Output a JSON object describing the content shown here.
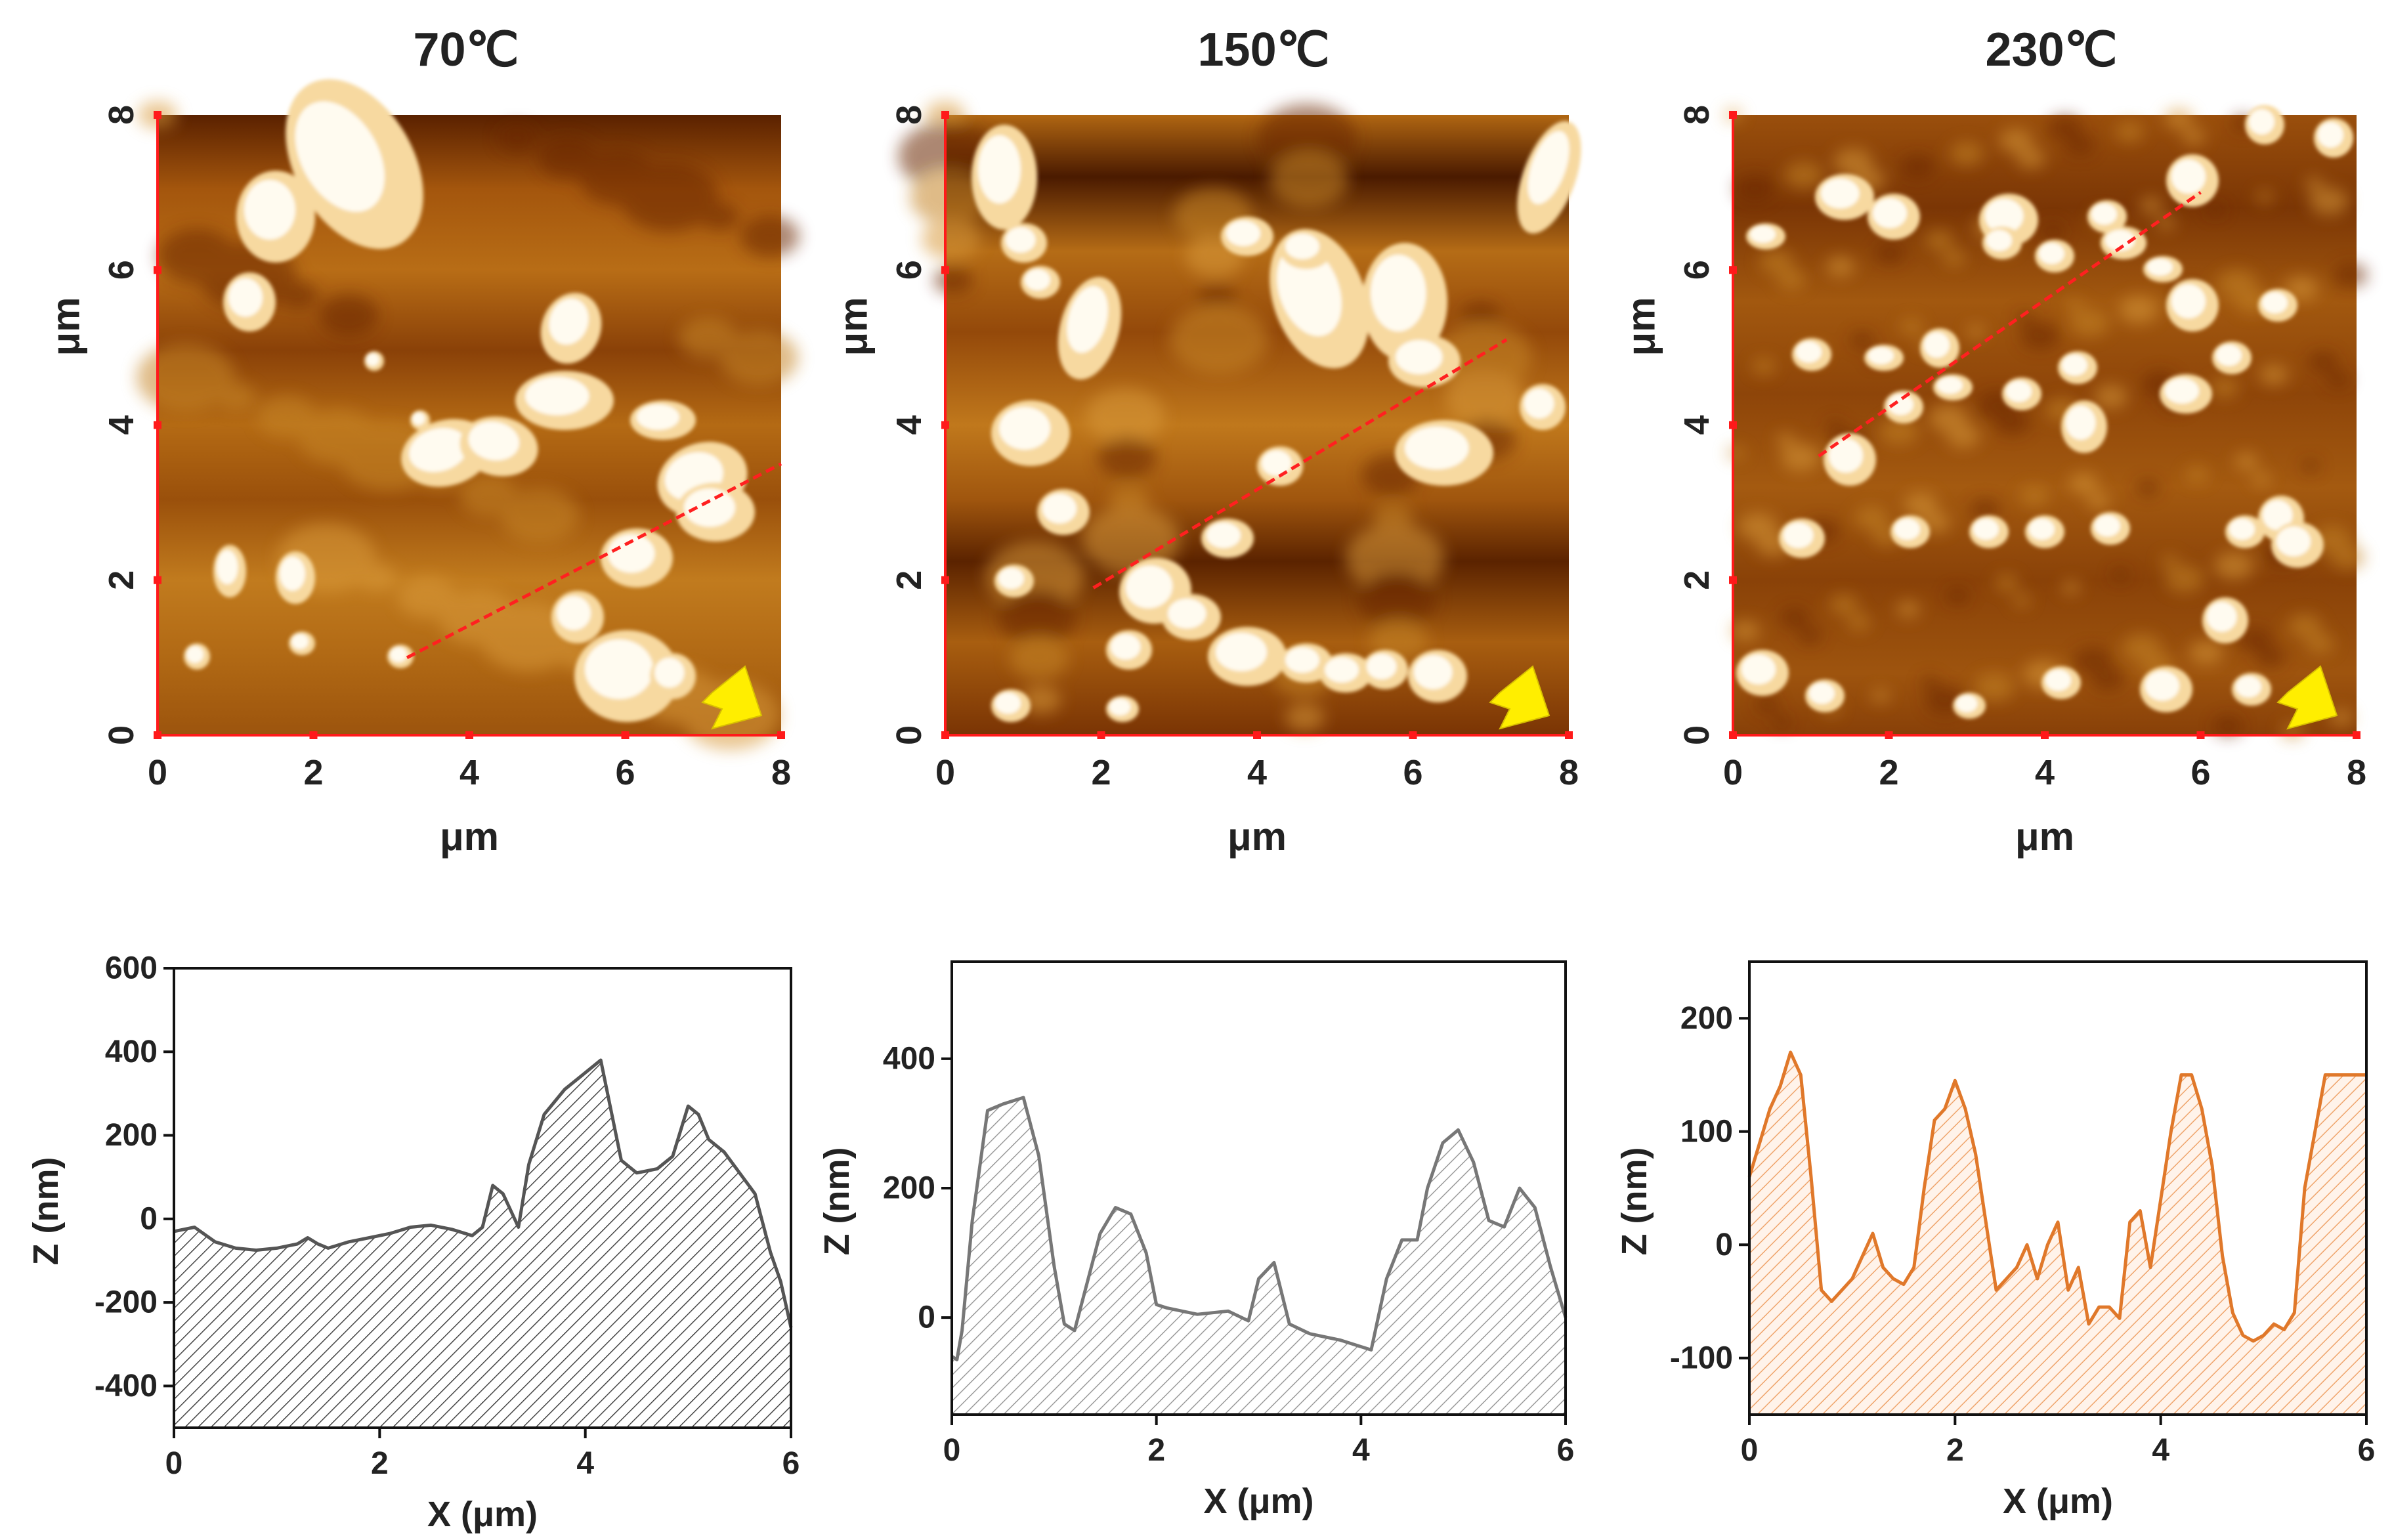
{
  "afm_panels": [
    {
      "title": "70℃",
      "xlabel": "μm",
      "ylabel": "μm",
      "xticks": [
        "0",
        "2",
        "4",
        "6",
        "8"
      ],
      "yticks": [
        "0",
        "2",
        "4",
        "6",
        "8"
      ],
      "range": [
        0,
        8
      ],
      "line": {
        "x1": 3.2,
        "y1": 1.0,
        "x2": 8.0,
        "y2": 3.5
      },
      "arrow_color": "#ffee00",
      "line_color": "#ff2020"
    },
    {
      "title": "150℃",
      "xlabel": "μm",
      "ylabel": "μm",
      "xticks": [
        "0",
        "2",
        "4",
        "6",
        "8"
      ],
      "yticks": [
        "0",
        "2",
        "4",
        "6",
        "8"
      ],
      "range": [
        0,
        8
      ],
      "line": {
        "x1": 1.9,
        "y1": 1.9,
        "x2": 7.2,
        "y2": 5.1
      },
      "arrow_color": "#ffee00",
      "line_color": "#ff2020"
    },
    {
      "title": "230℃",
      "xlabel": "μm",
      "ylabel": "μm",
      "xticks": [
        "0",
        "2",
        "4",
        "6",
        "8"
      ],
      "yticks": [
        "0",
        "2",
        "4",
        "6",
        "8"
      ],
      "range": [
        0,
        8
      ],
      "line": {
        "x1": 1.1,
        "y1": 3.6,
        "x2": 6.0,
        "y2": 7.0
      },
      "arrow_color": "#ffee00",
      "line_color": "#ff2020"
    }
  ],
  "chart_data": [
    {
      "type": "area",
      "xlabel": "X (μm)",
      "ylabel": "Z (nm)",
      "xlim": [
        0,
        6
      ],
      "ylim": [
        -500,
        600
      ],
      "xticks": [
        "0",
        "2",
        "4",
        "6"
      ],
      "yticks": [
        "600",
        "400",
        "200",
        "0",
        "-200",
        "-400"
      ],
      "ytick_values": [
        600,
        400,
        200,
        0,
        -200,
        -400
      ],
      "color": "#555555",
      "fill": "#555555",
      "x": [
        0,
        0.2,
        0.4,
        0.6,
        0.8,
        1.0,
        1.2,
        1.3,
        1.4,
        1.5,
        1.7,
        1.9,
        2.1,
        2.3,
        2.5,
        2.7,
        2.9,
        3.0,
        3.1,
        3.2,
        3.35,
        3.45,
        3.6,
        3.8,
        4.0,
        4.15,
        4.25,
        4.35,
        4.5,
        4.7,
        4.85,
        5.0,
        5.1,
        5.2,
        5.35,
        5.5,
        5.65,
        5.8,
        5.9,
        6.0
      ],
      "y": [
        -30,
        -20,
        -55,
        -70,
        -75,
        -70,
        -60,
        -45,
        -60,
        -70,
        -55,
        -45,
        -35,
        -20,
        -15,
        -25,
        -40,
        -20,
        80,
        60,
        -20,
        130,
        250,
        310,
        350,
        380,
        260,
        140,
        110,
        120,
        150,
        270,
        250,
        190,
        160,
        110,
        60,
        -80,
        -150,
        -260
      ]
    },
    {
      "type": "area",
      "xlabel": "X (μm)",
      "ylabel": "Z (nm)",
      "xlim": [
        0,
        6
      ],
      "ylim": [
        -150,
        550
      ],
      "xticks": [
        "0",
        "2",
        "4",
        "6"
      ],
      "yticks": [
        "400",
        "200",
        "0"
      ],
      "ytick_values": [
        400,
        200,
        0
      ],
      "color": "#777777",
      "fill": "#999999",
      "x": [
        0,
        0.05,
        0.1,
        0.2,
        0.35,
        0.5,
        0.7,
        0.85,
        1.0,
        1.1,
        1.2,
        1.3,
        1.45,
        1.6,
        1.75,
        1.9,
        2.0,
        2.1,
        2.4,
        2.7,
        2.9,
        3.0,
        3.15,
        3.3,
        3.5,
        3.8,
        4.0,
        4.1,
        4.25,
        4.4,
        4.55,
        4.65,
        4.8,
        4.95,
        5.1,
        5.25,
        5.4,
        5.55,
        5.7,
        5.85,
        6.0
      ],
      "y": [
        -60,
        -65,
        -20,
        150,
        320,
        330,
        340,
        250,
        80,
        -10,
        -20,
        40,
        130,
        170,
        160,
        100,
        20,
        15,
        5,
        10,
        -5,
        60,
        85,
        -10,
        -25,
        -35,
        -45,
        -50,
        60,
        120,
        120,
        200,
        270,
        290,
        240,
        150,
        140,
        200,
        170,
        80,
        0
      ]
    },
    {
      "type": "area",
      "xlabel": "X (μm)",
      "ylabel": "Z (nm)",
      "xlim": [
        0,
        6
      ],
      "ylim": [
        -150,
        250
      ],
      "xticks": [
        "0",
        "2",
        "4",
        "6"
      ],
      "yticks": [
        "200",
        "100",
        "0",
        "-100"
      ],
      "ytick_values": [
        200,
        100,
        0,
        -100
      ],
      "color": "#e0782a",
      "fill": "#f0a060",
      "x": [
        0,
        0.1,
        0.2,
        0.3,
        0.4,
        0.5,
        0.6,
        0.7,
        0.8,
        0.9,
        1.0,
        1.1,
        1.2,
        1.3,
        1.4,
        1.5,
        1.6,
        1.7,
        1.8,
        1.9,
        2.0,
        2.1,
        2.2,
        2.3,
        2.4,
        2.5,
        2.6,
        2.7,
        2.8,
        2.9,
        3.0,
        3.1,
        3.2,
        3.3,
        3.4,
        3.5,
        3.6,
        3.7,
        3.8,
        3.9,
        4.0,
        4.1,
        4.2,
        4.3,
        4.4,
        4.5,
        4.6,
        4.7,
        4.8,
        4.9,
        5.0,
        5.1,
        5.2,
        5.3,
        5.4,
        5.5,
        5.6,
        5.7,
        5.8,
        5.9,
        6.0
      ],
      "y": [
        60,
        90,
        120,
        140,
        170,
        150,
        60,
        -40,
        -50,
        -40,
        -30,
        -10,
        10,
        -20,
        -30,
        -35,
        -20,
        50,
        110,
        120,
        145,
        120,
        80,
        20,
        -40,
        -30,
        -20,
        0,
        -30,
        0,
        20,
        -40,
        -20,
        -70,
        -55,
        -55,
        -65,
        20,
        30,
        -20,
        40,
        100,
        150,
        150,
        120,
        70,
        -10,
        -60,
        -80,
        -85,
        -80,
        -70,
        -75,
        -60,
        50,
        100,
        150,
        150,
        150,
        150,
        150
      ]
    }
  ]
}
